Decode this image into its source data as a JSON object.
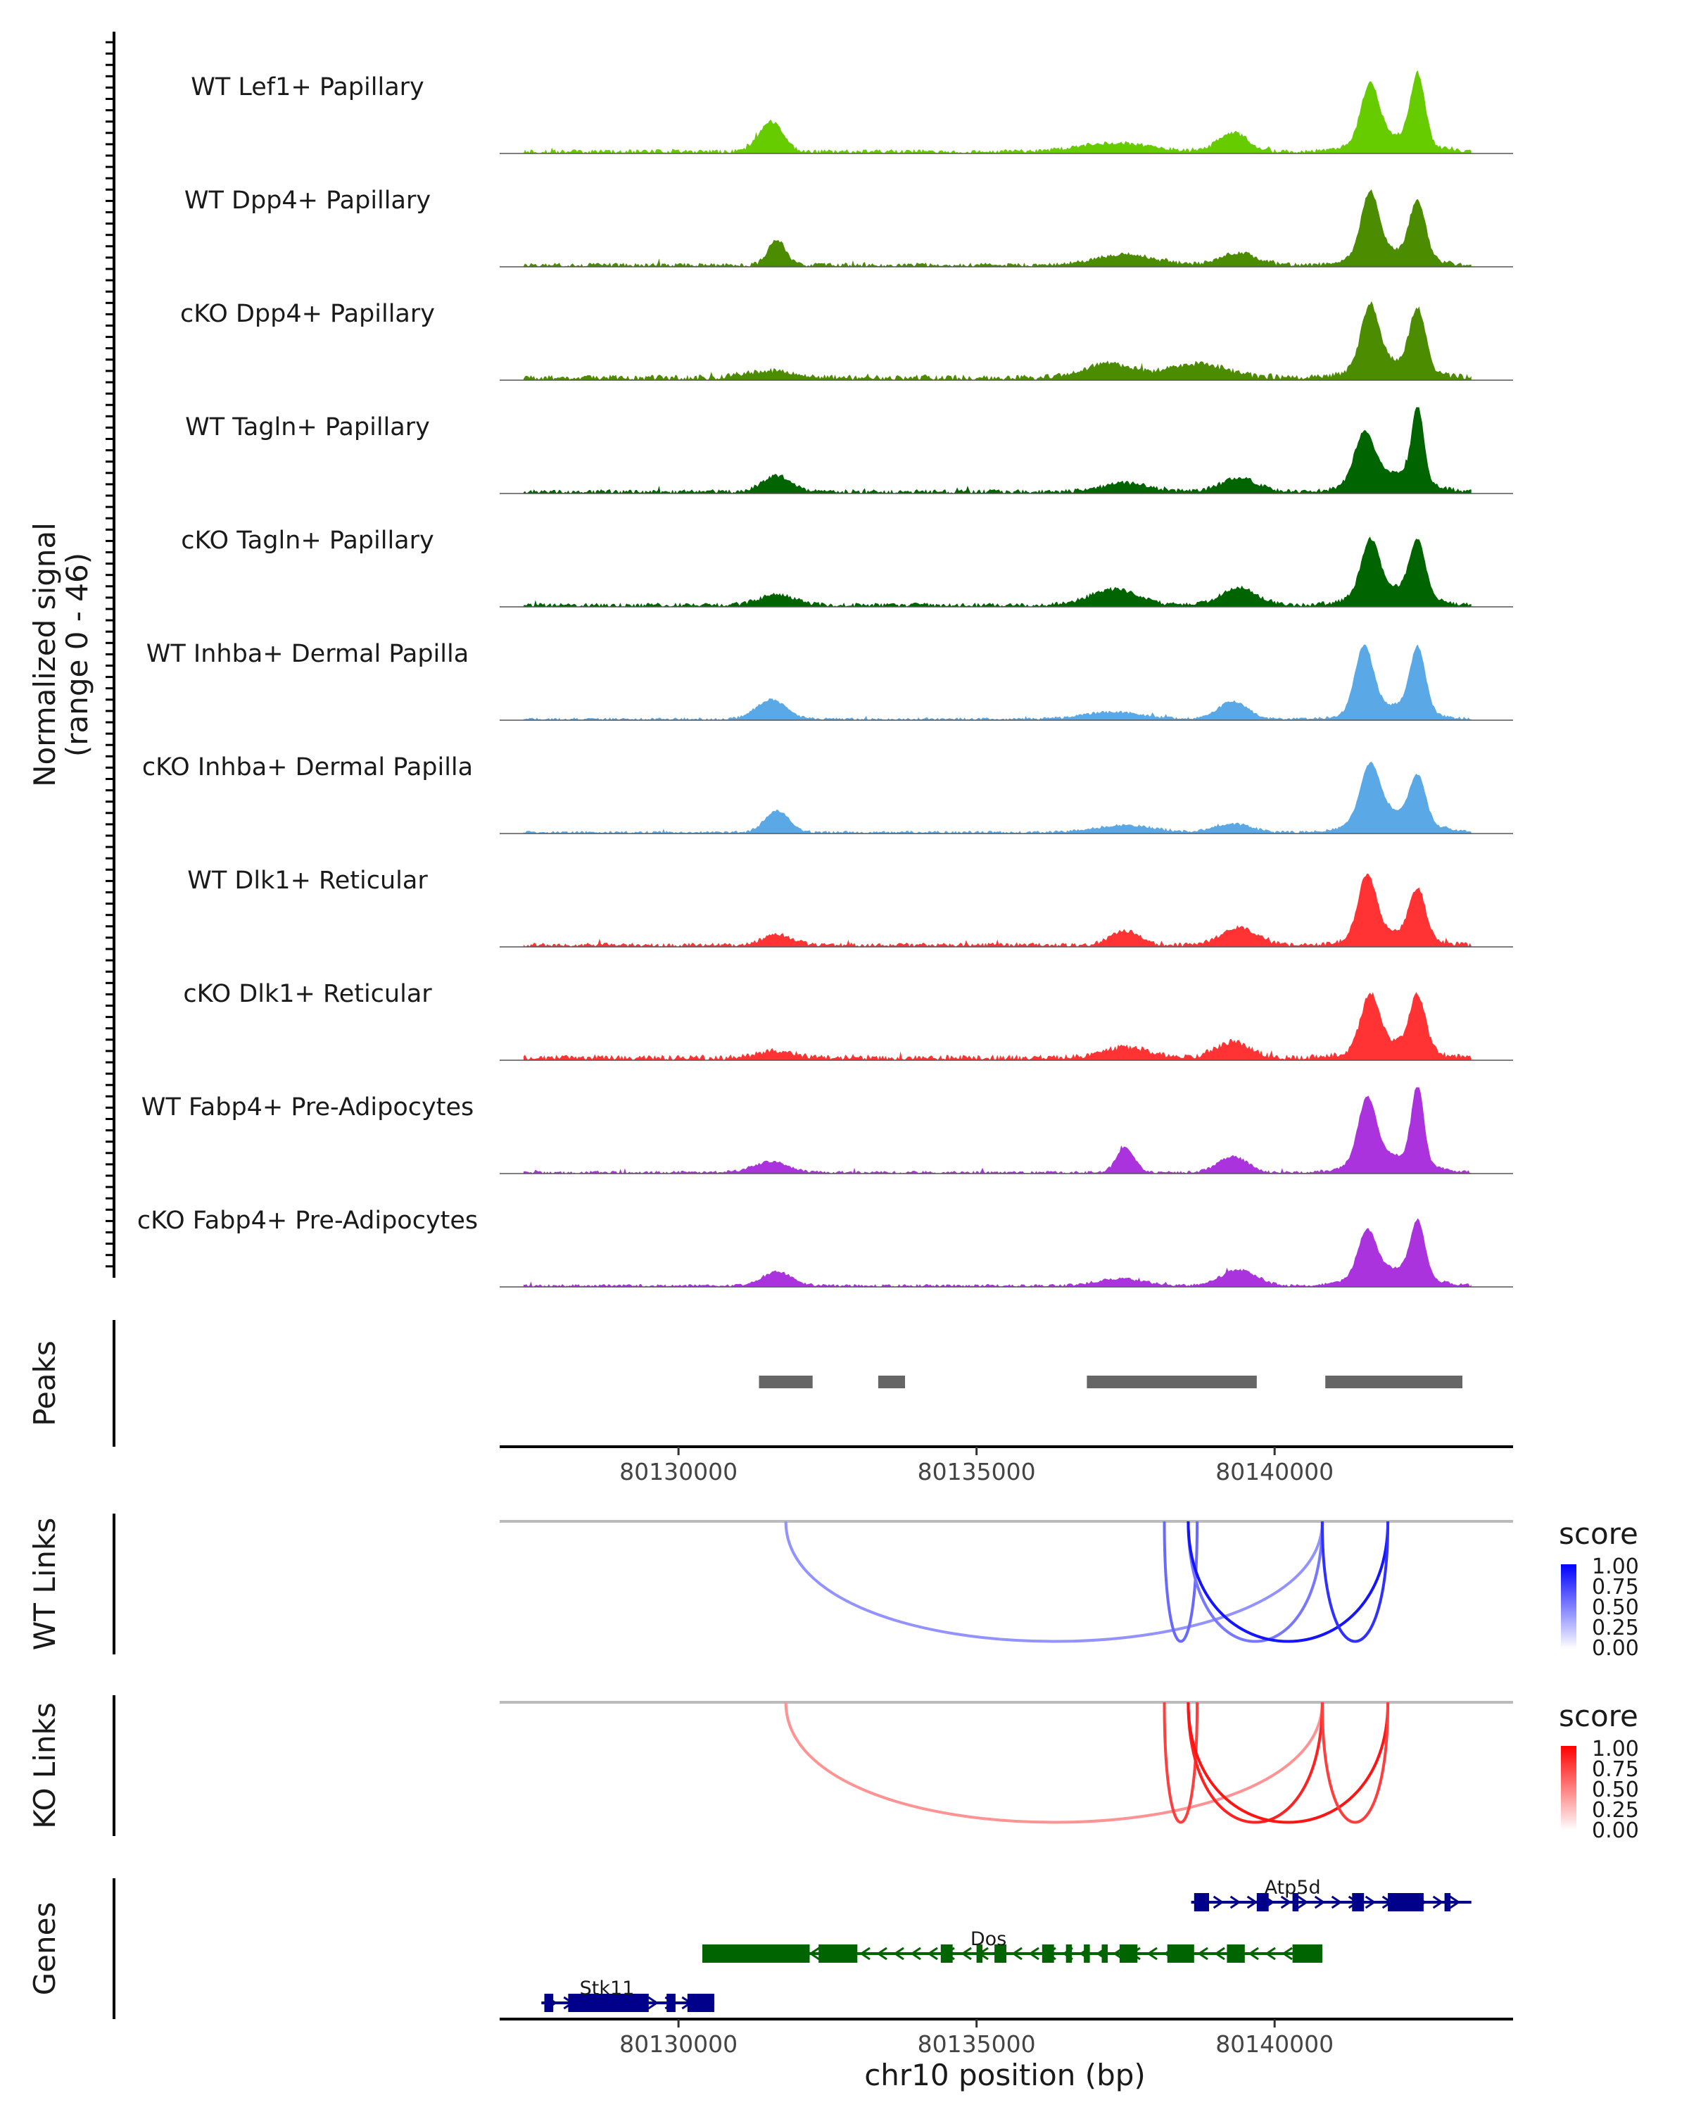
{
  "chart_data": {
    "type": "genome-track",
    "coverage": {
      "ylabel_line1": "Normalized signal",
      "ylabel_line2": "(range 0 - 46)",
      "tracks": [
        {
          "name": "WT Lef1+ Papillary",
          "color": "#66CC00",
          "peaks": [
            [
              80131550,
              0.34,
              200
            ],
            [
              80137300,
              0.1,
              600
            ],
            [
              80139300,
              0.22,
              250
            ],
            [
              80141600,
              0.65,
              150
            ],
            [
              80142400,
              0.78,
              120
            ],
            [
              80141950,
              0.18,
              500
            ]
          ],
          "base": 0.03
        },
        {
          "name": "WT Dpp4+ Papillary",
          "color": "#4C8C00",
          "peaks": [
            [
              80131650,
              0.28,
              150
            ],
            [
              80137500,
              0.12,
              500
            ],
            [
              80139400,
              0.14,
              300
            ],
            [
              80141600,
              0.72,
              150
            ],
            [
              80142400,
              0.64,
              130
            ],
            [
              80141950,
              0.16,
              500
            ]
          ],
          "base": 0.03
        },
        {
          "name": "cKO Dpp4+ Papillary",
          "color": "#4C8C00",
          "peaks": [
            [
              80131500,
              0.08,
              400
            ],
            [
              80137200,
              0.16,
              400
            ],
            [
              80138700,
              0.16,
              500
            ],
            [
              80141600,
              0.7,
              150
            ],
            [
              80142400,
              0.68,
              130
            ],
            [
              80141950,
              0.18,
              500
            ]
          ],
          "base": 0.04
        },
        {
          "name": "WT Tagln+ Papillary",
          "color": "#006400",
          "peaks": [
            [
              80131650,
              0.18,
              250
            ],
            [
              80137500,
              0.1,
              400
            ],
            [
              80139400,
              0.16,
              300
            ],
            [
              80141500,
              0.55,
              160
            ],
            [
              80142400,
              0.85,
              100
            ],
            [
              80141950,
              0.22,
              500
            ]
          ],
          "base": 0.03
        },
        {
          "name": "cKO Tagln+ Papillary",
          "color": "#006400",
          "peaks": [
            [
              80131650,
              0.12,
              300
            ],
            [
              80137300,
              0.18,
              400
            ],
            [
              80139400,
              0.2,
              300
            ],
            [
              80141600,
              0.6,
              150
            ],
            [
              80142400,
              0.62,
              130
            ],
            [
              80141950,
              0.2,
              500
            ]
          ],
          "base": 0.03
        },
        {
          "name": "WT Inhba+ Dermal Papilla",
          "color": "#5AA9E6",
          "peaks": [
            [
              80131550,
              0.22,
              250
            ],
            [
              80137300,
              0.08,
              500
            ],
            [
              80139300,
              0.2,
              250
            ],
            [
              80141500,
              0.74,
              150
            ],
            [
              80142400,
              0.72,
              130
            ],
            [
              80141950,
              0.16,
              500
            ]
          ],
          "base": 0.02
        },
        {
          "name": "cKO Inhba+ Dermal Papilla",
          "color": "#5AA9E6",
          "peaks": [
            [
              80131650,
              0.25,
              200
            ],
            [
              80137500,
              0.08,
              500
            ],
            [
              80139300,
              0.1,
              300
            ],
            [
              80141600,
              0.6,
              160
            ],
            [
              80142400,
              0.5,
              130
            ],
            [
              80141950,
              0.24,
              500
            ]
          ],
          "base": 0.02
        },
        {
          "name": "WT Dlk1+ Reticular",
          "color": "#FF3333",
          "peaks": [
            [
              80131650,
              0.12,
              250
            ],
            [
              80137500,
              0.16,
              250
            ],
            [
              80139400,
              0.2,
              300
            ],
            [
              80141550,
              0.7,
              150
            ],
            [
              80142400,
              0.55,
              130
            ],
            [
              80141950,
              0.16,
              500
            ]
          ],
          "base": 0.03
        },
        {
          "name": "cKO Dlk1+ Reticular",
          "color": "#FF3333",
          "peaks": [
            [
              80131650,
              0.08,
              300
            ],
            [
              80137500,
              0.12,
              400
            ],
            [
              80139300,
              0.18,
              300
            ],
            [
              80141600,
              0.6,
              150
            ],
            [
              80142400,
              0.6,
              130
            ],
            [
              80141950,
              0.18,
              500
            ]
          ],
          "base": 0.04
        },
        {
          "name": "WT Fabp4+ Pre-Adipocytes",
          "color": "#AA33DD",
          "peaks": [
            [
              80131550,
              0.12,
              300
            ],
            [
              80137500,
              0.28,
              150
            ],
            [
              80139300,
              0.18,
              250
            ],
            [
              80141550,
              0.72,
              150
            ],
            [
              80142400,
              0.9,
              100
            ],
            [
              80141950,
              0.2,
              500
            ]
          ],
          "base": 0.02
        },
        {
          "name": "cKO Fabp4+ Pre-Adipocytes",
          "color": "#AA33DD",
          "peaks": [
            [
              80131650,
              0.16,
              250
            ],
            [
              80137400,
              0.08,
              400
            ],
            [
              80139400,
              0.18,
              300
            ],
            [
              80141550,
              0.5,
              150
            ],
            [
              80142400,
              0.62,
              120
            ],
            [
              80141950,
              0.2,
              500
            ]
          ],
          "base": 0.02
        }
      ]
    },
    "peaks_track": {
      "label": "Peaks",
      "regions": [
        [
          80131350,
          80132250
        ],
        [
          80133350,
          80133800
        ],
        [
          80136850,
          80139700
        ],
        [
          80140850,
          80143150
        ]
      ]
    },
    "xaxis": {
      "range": [
        80127000,
        80144000
      ],
      "ticks": [
        80130000,
        80135000,
        80140000
      ],
      "tick_labels": [
        "80130000",
        "80135000",
        "80140000"
      ],
      "label": "chr10 position (bp)"
    },
    "wt_links": {
      "label": "WT Links",
      "legend_title": "score",
      "legend_ticks": [
        "1.00",
        "0.75",
        "0.50",
        "0.25",
        "0.00"
      ],
      "color_low": "#FFFFFF",
      "color_high": "#0000FF",
      "arcs": [
        {
          "start": 80131800,
          "end": 80140800,
          "score": 0.25,
          "depth": 0.95
        },
        {
          "start": 80138150,
          "end": 80138700,
          "score": 0.4,
          "depth": 0.95
        },
        {
          "start": 80138550,
          "end": 80140800,
          "score": 0.35,
          "depth": 0.95
        },
        {
          "start": 80138550,
          "end": 80141900,
          "score": 0.7,
          "depth": 0.95
        },
        {
          "start": 80140800,
          "end": 80141900,
          "score": 0.6,
          "depth": 0.95
        }
      ]
    },
    "ko_links": {
      "label": "KO Links",
      "legend_title": "score",
      "legend_ticks": [
        "1.00",
        "0.75",
        "0.50",
        "0.25",
        "0.00"
      ],
      "color_low": "#FFFFFF",
      "color_high": "#FF0000",
      "arcs": [
        {
          "start": 80131800,
          "end": 80140800,
          "score": 0.25,
          "depth": 0.95
        },
        {
          "start": 80138150,
          "end": 80138700,
          "score": 0.55,
          "depth": 0.95
        },
        {
          "start": 80138550,
          "end": 80140800,
          "score": 0.65,
          "depth": 0.95
        },
        {
          "start": 80138550,
          "end": 80141900,
          "score": 0.7,
          "depth": 0.95
        },
        {
          "start": 80140800,
          "end": 80141900,
          "score": 0.55,
          "depth": 0.95
        }
      ]
    },
    "genes_track": {
      "label": "Genes",
      "genes": [
        {
          "name": "Atp5d",
          "strand": "+",
          "row": 0,
          "start": 80138600,
          "end": 80143300,
          "color": "#00008B",
          "exons": [
            [
              80138650,
              80138900
            ],
            [
              80139700,
              80139900
            ],
            [
              80140300,
              80140400
            ],
            [
              80141300,
              80141500
            ],
            [
              80141900,
              80142500
            ],
            [
              80142850,
              80142950
            ]
          ]
        },
        {
          "name": "Dos",
          "strand": "-",
          "row": 1,
          "start": 80130400,
          "end": 80140800,
          "color": "#006400",
          "exons": [
            [
              80130400,
              80132200
            ],
            [
              80132350,
              80133000
            ],
            [
              80134400,
              80134600
            ],
            [
              80135000,
              80135100
            ],
            [
              80135300,
              80135500
            ],
            [
              80136100,
              80136300
            ],
            [
              80136500,
              80136600
            ],
            [
              80136800,
              80136900
            ],
            [
              80137100,
              80137200
            ],
            [
              80137400,
              80137700
            ],
            [
              80138200,
              80138650
            ],
            [
              80139200,
              80139500
            ],
            [
              80140300,
              80140800
            ]
          ]
        },
        {
          "name": "Stk11",
          "strand": "+",
          "row": 2,
          "start": 80127700,
          "end": 80130600,
          "color": "#00008B",
          "exons": [
            [
              80127750,
              80127900
            ],
            [
              80128150,
              80129500
            ],
            [
              80129800,
              80129950
            ],
            [
              80130150,
              80130600
            ]
          ]
        }
      ]
    }
  }
}
